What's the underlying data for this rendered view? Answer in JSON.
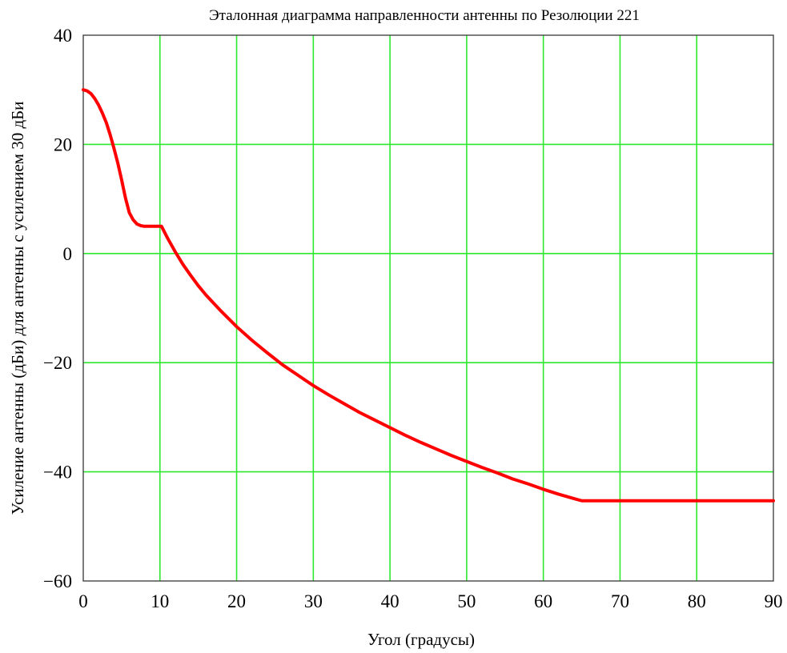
{
  "chart_data": {
    "type": "line",
    "title": "Эталонная диаграмма направленности антенны по Резолюции 221",
    "xlabel": "Угол (градусы)",
    "ylabel": "Усиление антенны (дБи) для антенны с усилением  30 дБи",
    "xlim": [
      0,
      90
    ],
    "ylim": [
      -60,
      40
    ],
    "xticks": [
      0,
      10,
      20,
      30,
      40,
      50,
      60,
      70,
      80,
      90
    ],
    "xtick_labels": [
      "0",
      "10",
      "20",
      "30",
      "40",
      "50",
      "60",
      "70",
      "80",
      "90"
    ],
    "yticks": [
      40,
      20,
      0,
      -20,
      -40,
      -60
    ],
    "ytick_labels": [
      "40",
      "20",
      "0",
      "−20",
      "−40",
      "−60"
    ],
    "grid": true,
    "colors": {
      "series": "#ff0000",
      "grid": "#2ee82e"
    },
    "series": [
      {
        "x": [
          0,
          0.5,
          1,
          1.5,
          2,
          2.5,
          3,
          3.5,
          4,
          4.5,
          5,
          5.5,
          6,
          6.5,
          7,
          7.5,
          7.9,
          8,
          9,
          10.2,
          11,
          12,
          13,
          14,
          15,
          16,
          17,
          18,
          20,
          22,
          24,
          26,
          28,
          30,
          32,
          34,
          36,
          38,
          40,
          42,
          44,
          46,
          48,
          50,
          52,
          54,
          56,
          58,
          60,
          62,
          64,
          65,
          70,
          75,
          80,
          85,
          90
        ],
        "y": [
          30,
          29.8,
          29.3,
          28.4,
          27.2,
          25.7,
          24.0,
          21.8,
          19.3,
          16.6,
          13.5,
          10.2,
          7.5,
          6.2,
          5.4,
          5.1,
          5.0,
          5.0,
          5.0,
          5.0,
          2.8,
          0.3,
          -2.0,
          -4.0,
          -5.9,
          -7.6,
          -9.1,
          -10.6,
          -13.4,
          -15.9,
          -18.2,
          -20.4,
          -22.3,
          -24.2,
          -25.9,
          -27.5,
          -29.1,
          -30.5,
          -31.9,
          -33.3,
          -34.6,
          -35.8,
          -37.0,
          -38.1,
          -39.2,
          -40.2,
          -41.3,
          -42.2,
          -43.2,
          -44.1,
          -44.9,
          -45.3,
          -45.3,
          -45.3,
          -45.3,
          -45.3,
          -45.3
        ]
      }
    ]
  }
}
